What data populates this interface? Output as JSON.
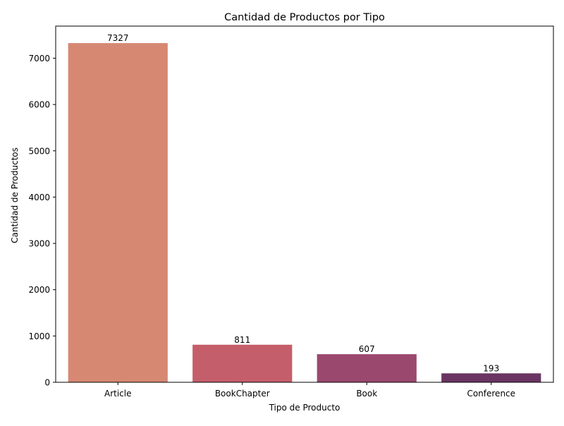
{
  "chart_data": {
    "type": "bar",
    "title": "Cantidad de Productos por Tipo",
    "xlabel": "Tipo de Producto",
    "ylabel": "Cantidad de Productos",
    "categories": [
      "Article",
      "BookChapter",
      "Book",
      "Conference"
    ],
    "values": [
      7327,
      811,
      607,
      193
    ],
    "value_labels": [
      "7327",
      "811",
      "607",
      "193"
    ],
    "colors": [
      "#d68873",
      "#c45e6a",
      "#9b486e",
      "#6a3562"
    ],
    "ylim": [
      0,
      7694
    ],
    "yticks": [
      0,
      1000,
      2000,
      3000,
      4000,
      5000,
      6000,
      7000
    ],
    "ytick_labels": [
      "0",
      "1000",
      "2000",
      "3000",
      "4000",
      "5000",
      "6000",
      "7000"
    ],
    "grid": false,
    "legend": false
  }
}
